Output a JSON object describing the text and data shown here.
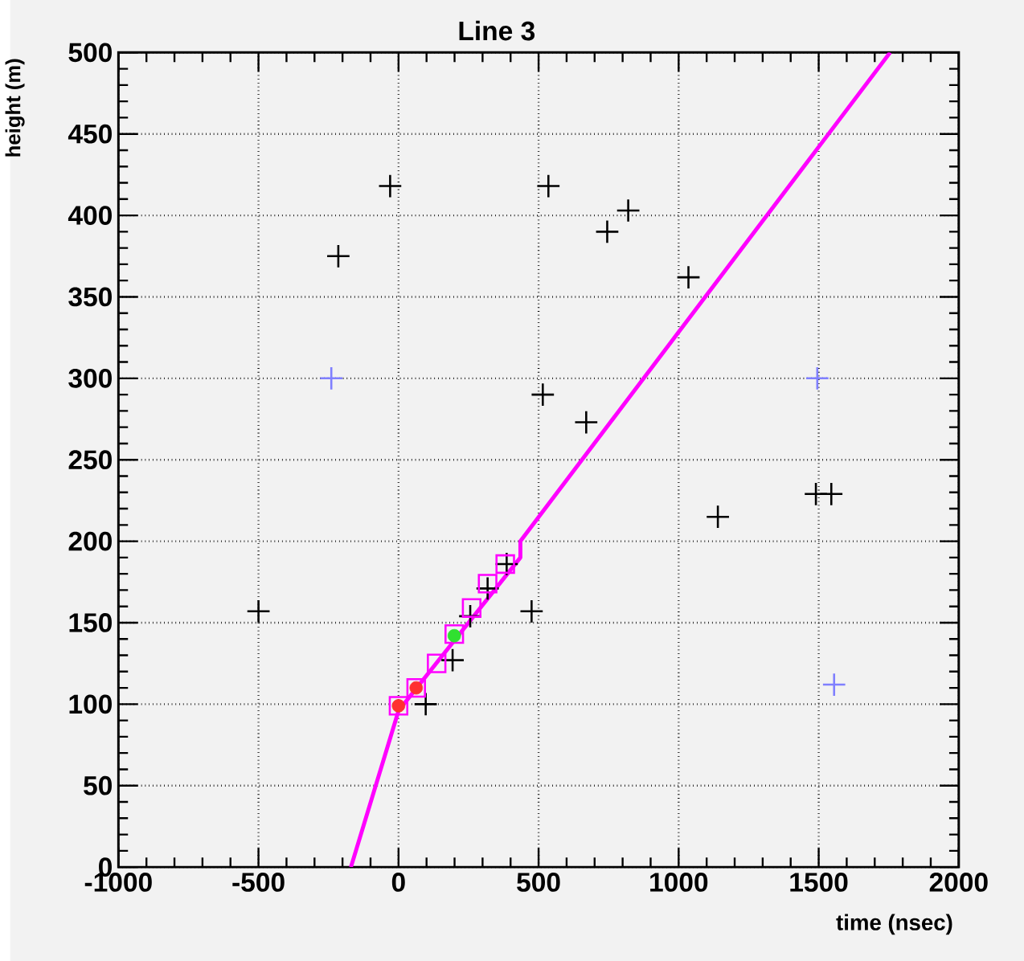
{
  "chart_data": {
    "type": "scatter",
    "title": "Line 3",
    "xlabel": "time (nsec)",
    "ylabel": "height (m)",
    "xlim": [
      -1000,
      2000
    ],
    "ylim": [
      0,
      500
    ],
    "xticks": [
      -1000,
      -500,
      0,
      500,
      1000,
      1500,
      2000
    ],
    "yticks": [
      0,
      50,
      100,
      150,
      200,
      250,
      300,
      350,
      400,
      450,
      500
    ],
    "grid": true,
    "series": [
      {
        "marker": "cross",
        "color": "#000000",
        "x": [
          -30,
          -215,
          -500,
          535,
          820,
          745,
          1035,
          515,
          670,
          1140,
          1490,
          1545,
          475,
          97,
          193,
          256,
          318,
          386
        ],
        "values": [
          418,
          375,
          157,
          418,
          403,
          390,
          362,
          290,
          273,
          215,
          229,
          229,
          157,
          100,
          127,
          154,
          171,
          186
        ]
      },
      {
        "marker": "cross",
        "color": "#7f7fff",
        "x": [
          -240,
          1495,
          1555
        ],
        "values": [
          300,
          300,
          112
        ]
      },
      {
        "marker": "square",
        "color": "#ff00ff",
        "x": [
          0,
          63,
          136,
          199,
          261,
          318,
          381
        ],
        "values": [
          99,
          110,
          125,
          143,
          159,
          174,
          186
        ]
      },
      {
        "marker": "circle",
        "color": "#ff3030",
        "x": [
          0,
          63
        ],
        "values": [
          99,
          110
        ]
      },
      {
        "marker": "circle",
        "color": "#30e030",
        "x": [
          199
        ],
        "values": [
          142
        ]
      },
      {
        "type": "line",
        "marker": "none",
        "color": "#ff00ff",
        "x": [
          -170,
          0,
          435,
          435,
          1755
        ],
        "values": [
          0,
          96,
          190,
          200,
          500
        ]
      }
    ]
  }
}
